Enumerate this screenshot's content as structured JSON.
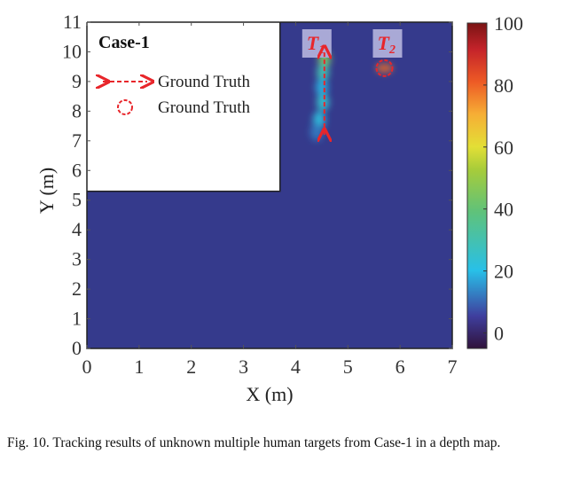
{
  "chart_data": {
    "type": "heatmap",
    "title": "",
    "xlabel": "X (m)",
    "ylabel": "Y (m)",
    "xlim": [
      0,
      7
    ],
    "ylim": [
      0,
      11
    ],
    "xticks": [
      "0",
      "1",
      "2",
      "3",
      "4",
      "5",
      "6",
      "7"
    ],
    "yticks": [
      "0",
      "1",
      "2",
      "3",
      "4",
      "5",
      "6",
      "7",
      "8",
      "9",
      "10",
      "11"
    ],
    "colorbar": {
      "range": [
        -5,
        100
      ],
      "ticks": [
        "0",
        "20",
        "40",
        "60",
        "80",
        "100"
      ],
      "colormap": "turbo-like"
    },
    "blank_region": {
      "x": [
        0,
        3.7
      ],
      "y": [
        5.3,
        11
      ]
    },
    "background_value": 0,
    "hotspots": [
      {
        "x": 4.55,
        "y": 9.75,
        "value": 45
      },
      {
        "x": 4.52,
        "y": 9.3,
        "value": 30
      },
      {
        "x": 4.5,
        "y": 8.8,
        "value": 18
      },
      {
        "x": 4.52,
        "y": 8.3,
        "value": 25
      },
      {
        "x": 4.45,
        "y": 7.7,
        "value": 22
      },
      {
        "x": 4.4,
        "y": 7.3,
        "value": 12
      },
      {
        "x": 5.7,
        "y": 9.45,
        "value": 75
      }
    ],
    "targets": [
      {
        "label": "T",
        "subscript": "1",
        "x": 4.55,
        "ground_truth": "line",
        "y_from": 7.2,
        "y_to": 10.0
      },
      {
        "label": "T",
        "subscript": "2",
        "x": 5.7,
        "y": 9.45,
        "ground_truth": "circle"
      }
    ],
    "legend": {
      "title": "Case-1",
      "entries": [
        "Ground Truth",
        "Ground Truth"
      ],
      "placement": "top-left"
    }
  },
  "caption": "Fig. 10.  Tracking results of unknown multiple human targets from Case-1 in a depth map.",
  "colors": {
    "background": "#353a8c",
    "ground_truth": "#e8262b",
    "label_box": "#a9a9d6"
  }
}
